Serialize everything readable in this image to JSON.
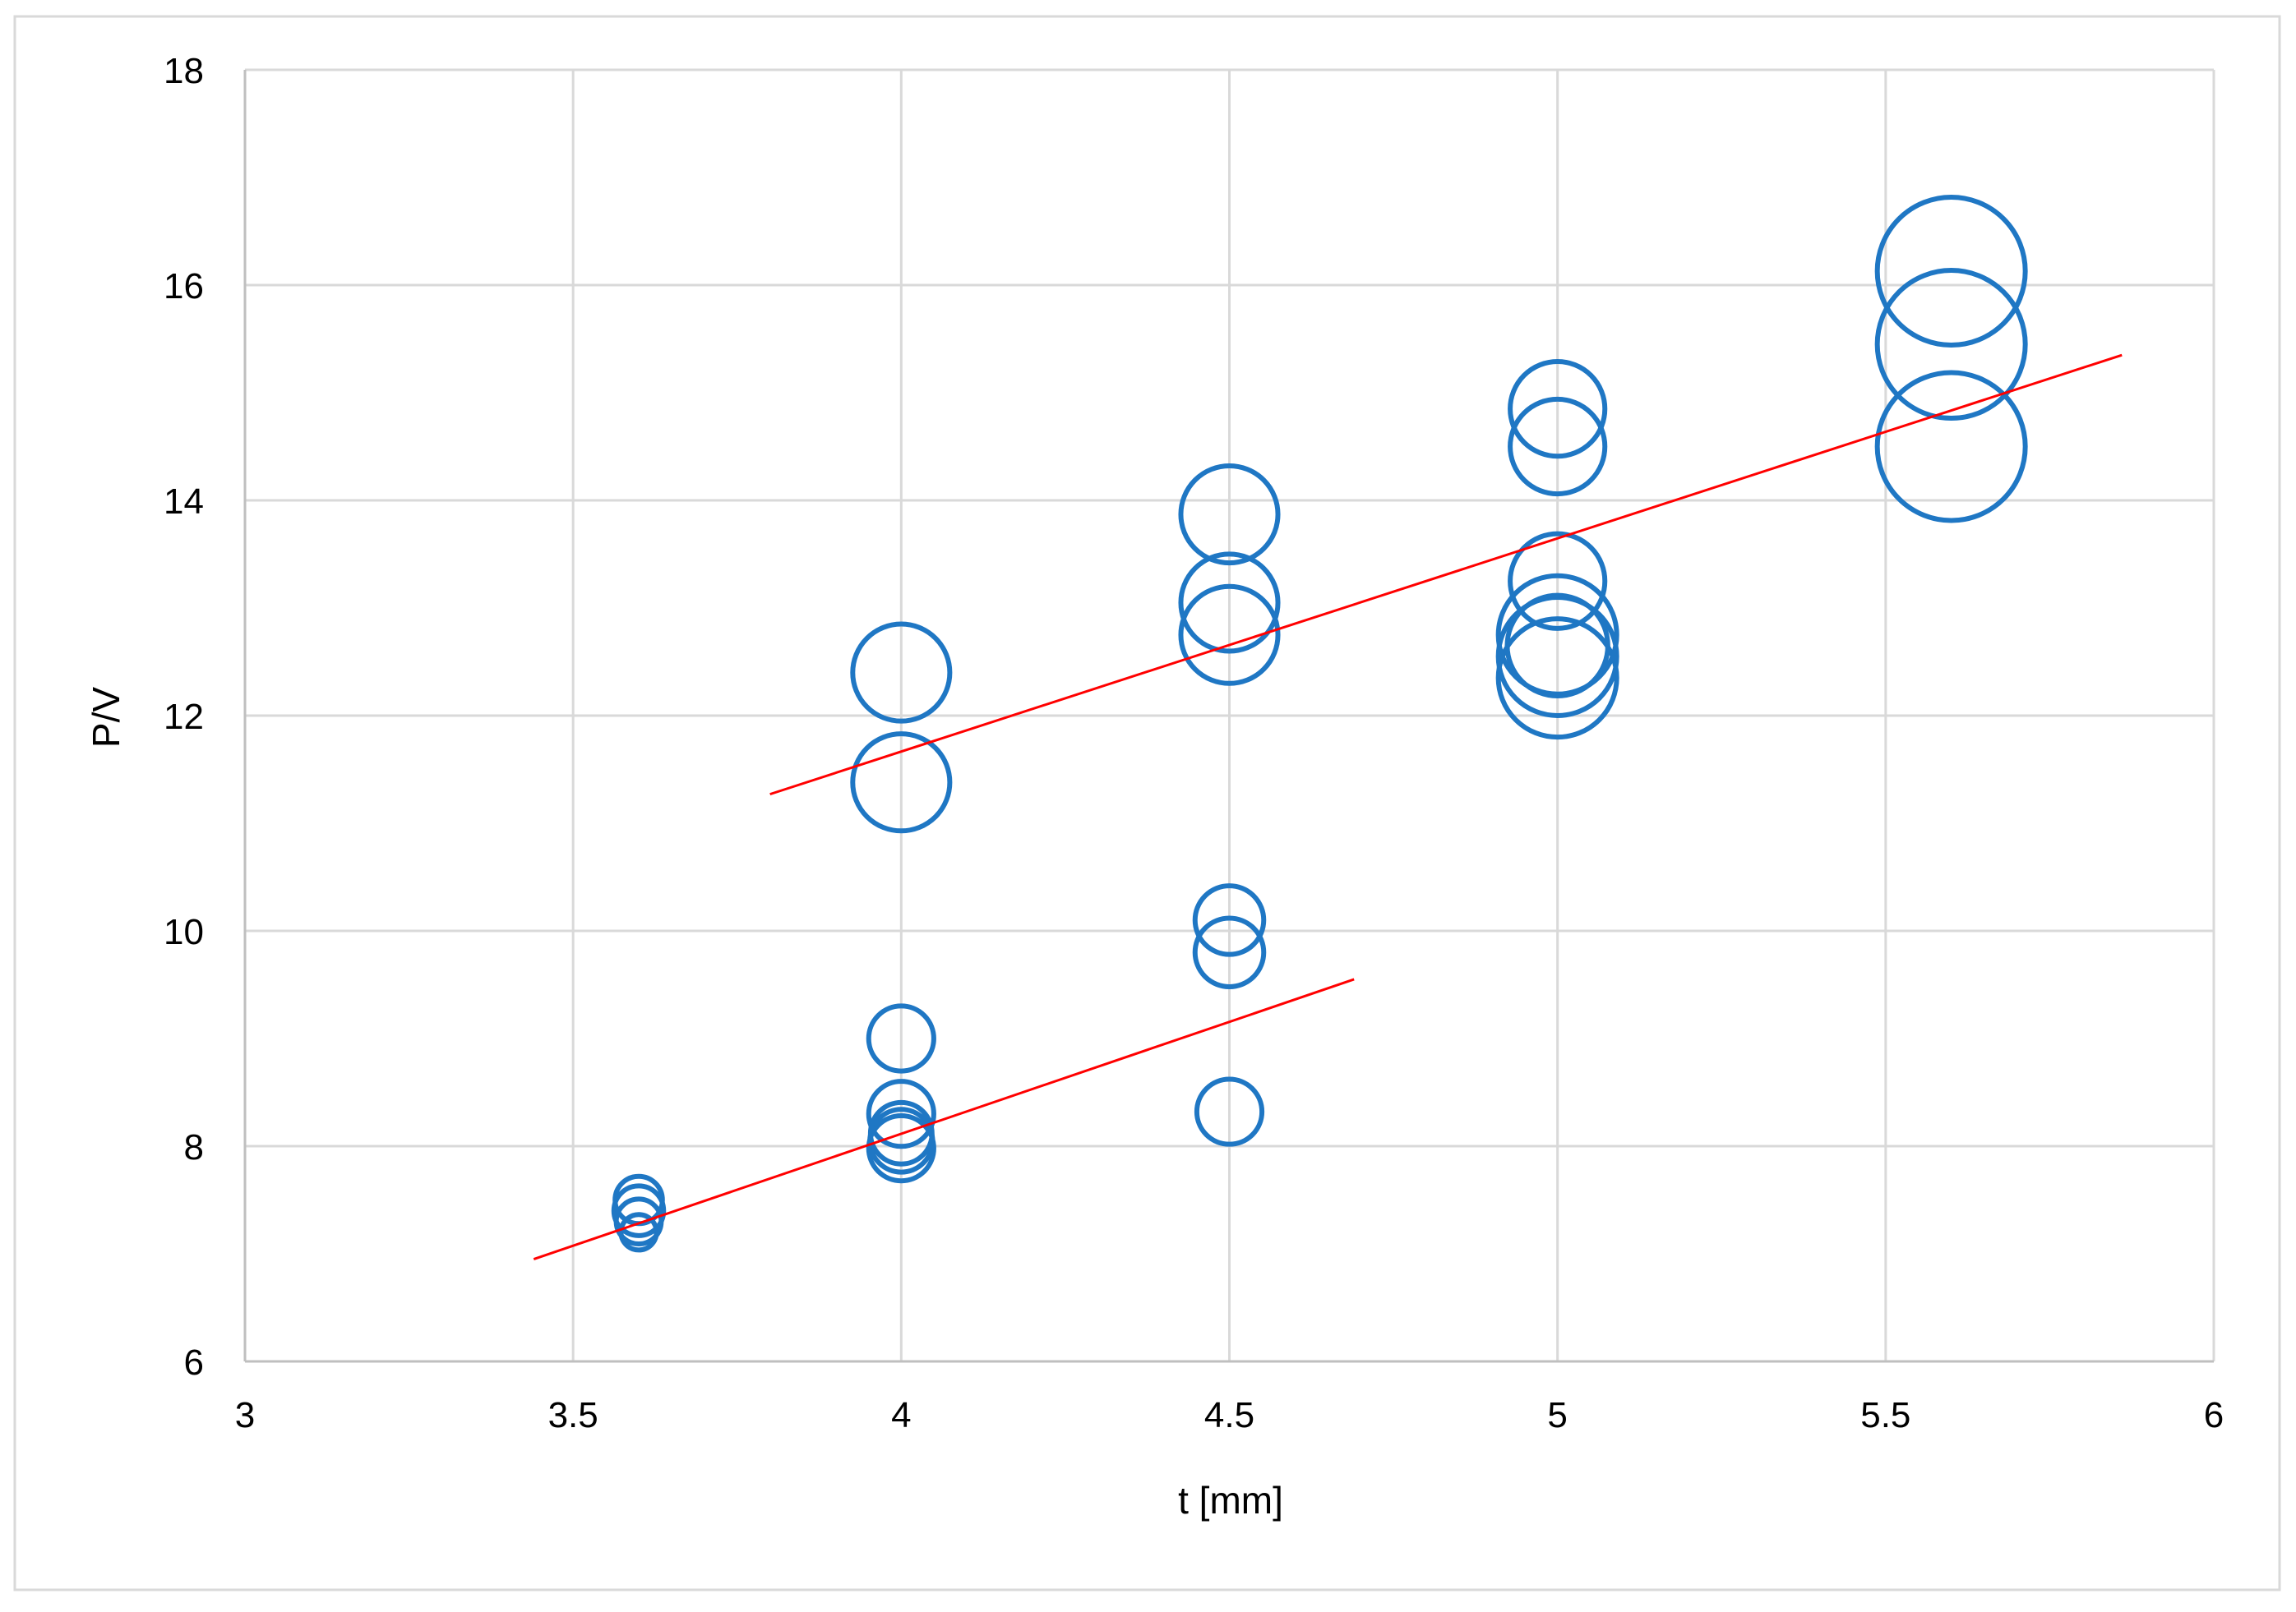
{
  "chart_data": {
    "type": "bubble",
    "xlabel": "t [mm]",
    "ylabel": "P/V",
    "xlim": [
      3,
      6
    ],
    "ylim": [
      6,
      18
    ],
    "x_ticks": [
      3,
      3.5,
      4,
      4.5,
      5,
      5.5,
      6
    ],
    "y_ticks": [
      6,
      8,
      10,
      12,
      14,
      16,
      18
    ],
    "x_tick_labels": [
      "3",
      "3.5",
      "4",
      "4.5",
      "5",
      "5.5",
      "6"
    ],
    "y_tick_labels": [
      "6",
      "8",
      "10",
      "12",
      "14",
      "16",
      "18"
    ],
    "grid": true,
    "legend": "none",
    "series": [
      {
        "color": "#1f77c4",
        "points": [
          {
            "x": 3.6,
            "y": 7.2,
            "size": 0.3
          },
          {
            "x": 3.6,
            "y": 7.3,
            "size": 0.38
          },
          {
            "x": 3.6,
            "y": 7.4,
            "size": 0.42
          },
          {
            "x": 3.6,
            "y": 7.5,
            "size": 0.4
          },
          {
            "x": 4.0,
            "y": 7.98,
            "size": 0.55
          },
          {
            "x": 4.0,
            "y": 8.05,
            "size": 0.53
          },
          {
            "x": 4.0,
            "y": 8.12,
            "size": 0.52
          },
          {
            "x": 4.0,
            "y": 8.3,
            "size": 0.55
          },
          {
            "x": 4.0,
            "y": 9.0,
            "size": 0.55
          },
          {
            "x": 4.0,
            "y": 11.38,
            "size": 0.82
          },
          {
            "x": 4.0,
            "y": 12.4,
            "size": 0.82
          },
          {
            "x": 4.5,
            "y": 8.32,
            "size": 0.55
          },
          {
            "x": 4.5,
            "y": 9.8,
            "size": 0.58
          },
          {
            "x": 4.5,
            "y": 10.1,
            "size": 0.58
          },
          {
            "x": 4.5,
            "y": 12.75,
            "size": 0.82
          },
          {
            "x": 4.5,
            "y": 13.05,
            "size": 0.82
          },
          {
            "x": 4.5,
            "y": 13.87,
            "size": 0.82
          },
          {
            "x": 5.0,
            "y": 12.35,
            "size": 1.0
          },
          {
            "x": 5.0,
            "y": 12.55,
            "size": 1.0
          },
          {
            "x": 5.0,
            "y": 12.75,
            "size": 1.0
          },
          {
            "x": 5.0,
            "y": 12.65,
            "size": 0.85
          },
          {
            "x": 5.0,
            "y": 13.25,
            "size": 0.8
          },
          {
            "x": 5.0,
            "y": 14.5,
            "size": 0.8
          },
          {
            "x": 5.0,
            "y": 14.85,
            "size": 0.8
          },
          {
            "x": 5.6,
            "y": 14.5,
            "size": 1.25
          },
          {
            "x": 5.6,
            "y": 15.45,
            "size": 1.25
          },
          {
            "x": 5.6,
            "y": 16.13,
            "size": 1.25
          }
        ]
      }
    ],
    "trendlines": [
      {
        "color": "#ff0000",
        "x": [
          3.44,
          4.69
        ],
        "y": [
          6.95,
          9.55
        ]
      },
      {
        "color": "#ff0000",
        "x": [
          3.8,
          5.86
        ],
        "y": [
          11.27,
          15.35
        ]
      }
    ],
    "colors": {
      "gridline": "#d9d9d9",
      "border": "#d9d9d9",
      "bubble": "#1f77c4",
      "trendline": "#ff0000"
    }
  }
}
